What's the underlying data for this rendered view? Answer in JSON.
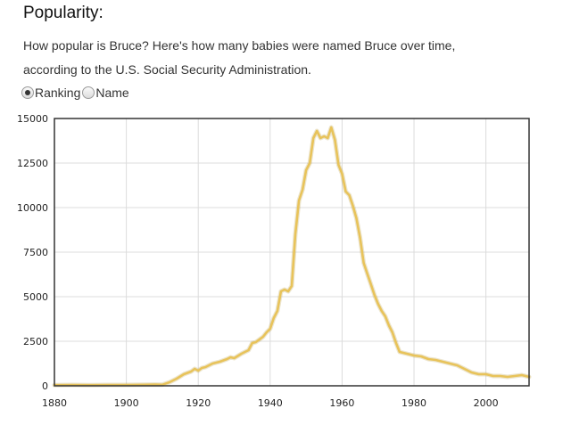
{
  "heading": "Popularity:",
  "description": {
    "line1": "How popular is Bruce? Here's how many babies were named Bruce over time,",
    "line2": "according to the U.S. Social Security Administration."
  },
  "mode_toggle": {
    "options": [
      {
        "label": "Ranking",
        "selected": true
      },
      {
        "label": "Name",
        "selected": false
      }
    ]
  },
  "chart_data": {
    "type": "line",
    "title": "",
    "xlabel": "",
    "ylabel": "",
    "xlim": [
      1880,
      2012
    ],
    "ylim": [
      0,
      15000
    ],
    "x_ticks": [
      1880,
      1900,
      1920,
      1940,
      1960,
      1980,
      2000
    ],
    "y_ticks": [
      0,
      2500,
      5000,
      7500,
      10000,
      12500,
      15000
    ],
    "grid": true,
    "series": [
      {
        "color": "#e8c35a",
        "x": [
          1880,
          1885,
          1890,
          1895,
          1900,
          1905,
          1908,
          1910,
          1912,
          1914,
          1916,
          1918,
          1919,
          1920,
          1921,
          1922,
          1924,
          1926,
          1928,
          1929,
          1930,
          1932,
          1934,
          1935,
          1936,
          1938,
          1939,
          1940,
          1941,
          1942,
          1943,
          1944,
          1945,
          1946,
          1947,
          1948,
          1949,
          1950,
          1951,
          1952,
          1953,
          1954,
          1955,
          1956,
          1957,
          1958,
          1959,
          1960,
          1961,
          1962,
          1963,
          1964,
          1965,
          1966,
          1967,
          1968,
          1969,
          1970,
          1971,
          1972,
          1973,
          1974,
          1975,
          1976,
          1978,
          1980,
          1982,
          1984,
          1986,
          1988,
          1990,
          1992,
          1994,
          1996,
          1998,
          2000,
          2002,
          2004,
          2006,
          2008,
          2010,
          2012
        ],
        "y": [
          40,
          50,
          40,
          50,
          50,
          60,
          70,
          60,
          200,
          400,
          650,
          800,
          950,
          850,
          1000,
          1050,
          1250,
          1350,
          1500,
          1600,
          1550,
          1800,
          2000,
          2400,
          2450,
          2750,
          3000,
          3200,
          3800,
          4200,
          5300,
          5400,
          5300,
          5600,
          8500,
          10400,
          11000,
          12100,
          12500,
          13900,
          14300,
          13900,
          14000,
          13900,
          14500,
          13800,
          12400,
          11900,
          10900,
          10700,
          10100,
          9400,
          8300,
          6900,
          6300,
          5700,
          5100,
          4600,
          4200,
          3900,
          3400,
          3000,
          2400,
          1900,
          1800,
          1700,
          1650,
          1500,
          1450,
          1350,
          1250,
          1150,
          950,
          750,
          650,
          650,
          550,
          550,
          500,
          550,
          600,
          500
        ]
      }
    ]
  }
}
